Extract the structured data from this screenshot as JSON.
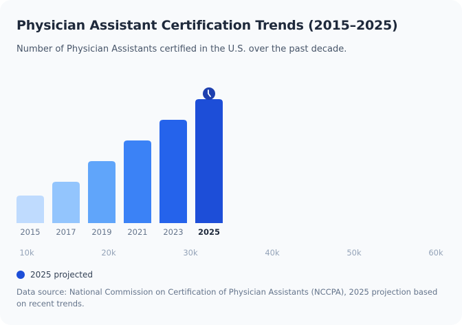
{
  "header": {
    "title": "Physician Assistant Certification Trends (2015–2025)",
    "subtitle": "Number of Physician Assistants certified in the U.S. over the past decade."
  },
  "legend": {
    "label": "2025 projected",
    "color": "#1d4ed8"
  },
  "footer": {
    "source": "Data source: National Commission on Certification of Physician Assistants (NCCPA), 2025 projection based on recent trends."
  },
  "projected_icon": "clock-icon",
  "chart_data": {
    "type": "bar",
    "title": "Physician Assistant Certification Trends (2015–2025)",
    "subtitle": "Number of Physician Assistants certified in the U.S. over the past decade.",
    "categories": [
      "2015",
      "2017",
      "2019",
      "2021",
      "2023",
      "2025"
    ],
    "values": [
      13300,
      20000,
      30000,
      40000,
      50000,
      60000
    ],
    "colors": [
      "#bfdbfe",
      "#93c5fd",
      "#60a5fa",
      "#3b82f6",
      "#2563eb",
      "#1d4ed8"
    ],
    "highlight": "2025",
    "projected": [
      "2025"
    ],
    "ylim": [
      0,
      60000
    ],
    "axis_ticks": [
      "10k",
      "20k",
      "30k",
      "40k",
      "50k",
      "60k"
    ],
    "xlabel": "",
    "ylabel": "",
    "grid": false,
    "legend": {
      "entries": [
        "2025 projected"
      ],
      "position": "bottom-left"
    }
  }
}
